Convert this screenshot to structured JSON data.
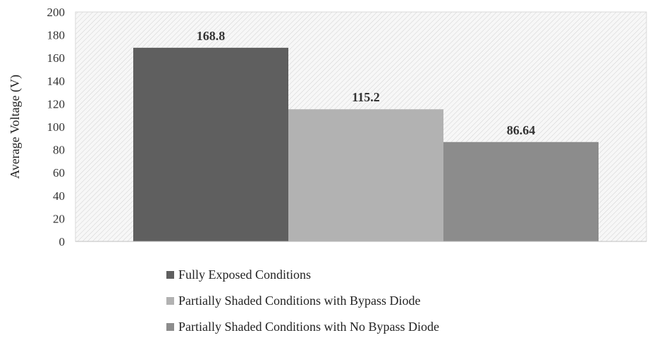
{
  "chart_data": {
    "type": "bar",
    "categories": [
      "Fully Exposed Conditions",
      "Partially Shaded Conditions with Bypass Diode",
      "Partially Shaded Conditions with No Bypass Diode"
    ],
    "values": [
      168.8,
      115.2,
      86.64
    ],
    "data_labels": [
      "168.8",
      "115.2",
      "86.64"
    ],
    "colors": [
      "#5f5f5f",
      "#b2b2b2",
      "#8c8c8c"
    ],
    "title": "",
    "xlabel": "",
    "ylabel": "Average Voltage (V)",
    "ylim": [
      0,
      200
    ],
    "yticks": [
      "0",
      "20",
      "40",
      "60",
      "80",
      "100",
      "120",
      "140",
      "160",
      "180",
      "200"
    ],
    "grid": false,
    "plot_background": "hatched",
    "legend": "bottom"
  }
}
